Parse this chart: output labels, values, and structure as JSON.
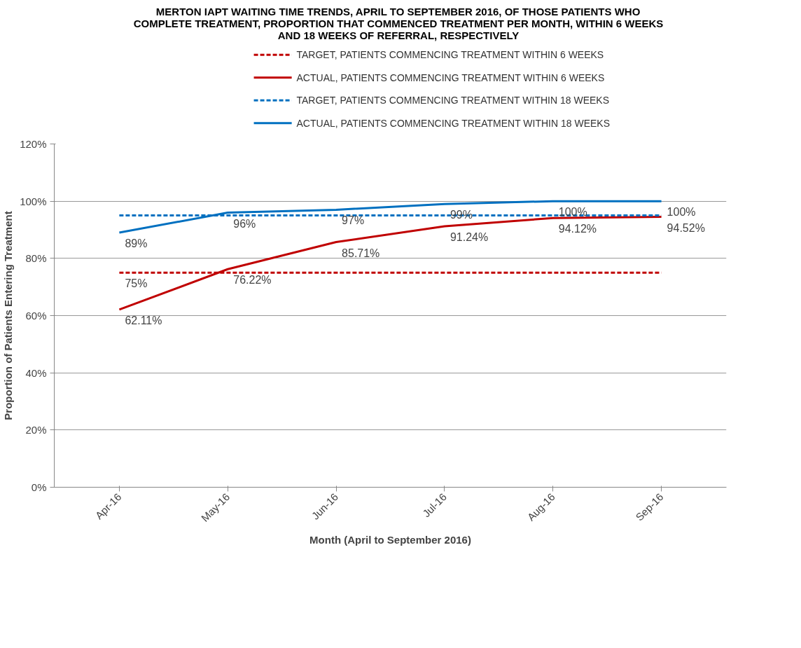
{
  "chart_data": {
    "type": "line",
    "title": "MERTON IAPT WAITING TIME TRENDS, APRIL TO SEPTEMBER 2016, OF THOSE PATIENTS WHO COMPLETE TREATMENT, PROPORTION THAT COMMENCED TREATMENT PER MONTH, WITHIN 6 WEEKS AND 18 WEEKS OF REFERRAL, RESPECTIVELY",
    "xlabel": "Month (April to September 2016)",
    "ylabel": "Proportion of Patients Entering Treatment",
    "categories": [
      "Apr-16",
      "May-16",
      "Jun-16",
      "Jul-16",
      "Aug-16",
      "Sep-16"
    ],
    "series": [
      {
        "name": "TARGET, PATIENTS COMMENCING TREATMENT WITHIN 6 WEEKS",
        "color": "#c00000",
        "line_style": "dashed",
        "values": [
          75,
          75,
          75,
          75,
          75,
          75
        ],
        "value_labels": [
          "75%",
          null,
          null,
          null,
          null,
          null
        ]
      },
      {
        "name": "ACTUAL, PATIENTS COMMENCING TREATMENT WITHIN 6 WEEKS",
        "color": "#c00000",
        "line_style": "solid",
        "values": [
          62.11,
          76.22,
          85.71,
          91.24,
          94.12,
          94.52
        ],
        "value_labels": [
          "62.11%",
          "76.22%",
          "85.71%",
          "91.24%",
          "94.12%",
          "94.52%"
        ]
      },
      {
        "name": "TARGET, PATIENTS COMMENCING TREATMENT WITHIN 18 WEEKS",
        "color": "#0070c0",
        "line_style": "dashed",
        "values": [
          95,
          95,
          95,
          95,
          95,
          95
        ]
      },
      {
        "name": "ACTUAL, PATIENTS COMMENCING TREATMENT WITHIN 18 WEEKS",
        "color": "#0070c0",
        "line_style": "solid",
        "values": [
          89,
          96,
          97,
          99,
          100,
          100
        ],
        "value_labels": [
          "89%",
          "96%",
          "97%",
          "99%",
          "100%",
          "100%"
        ]
      }
    ],
    "ylim": [
      0,
      120
    ],
    "yticks": [
      {
        "value": 0,
        "label": "0%"
      },
      {
        "value": 20,
        "label": "20%"
      },
      {
        "value": 40,
        "label": "40%"
      },
      {
        "value": 60,
        "label": "60%"
      },
      {
        "value": 80,
        "label": "80%"
      },
      {
        "value": 100,
        "label": "100%"
      },
      {
        "value": 120,
        "label": "120%"
      }
    ],
    "grid": "y",
    "legend": "top",
    "marker": "none"
  }
}
